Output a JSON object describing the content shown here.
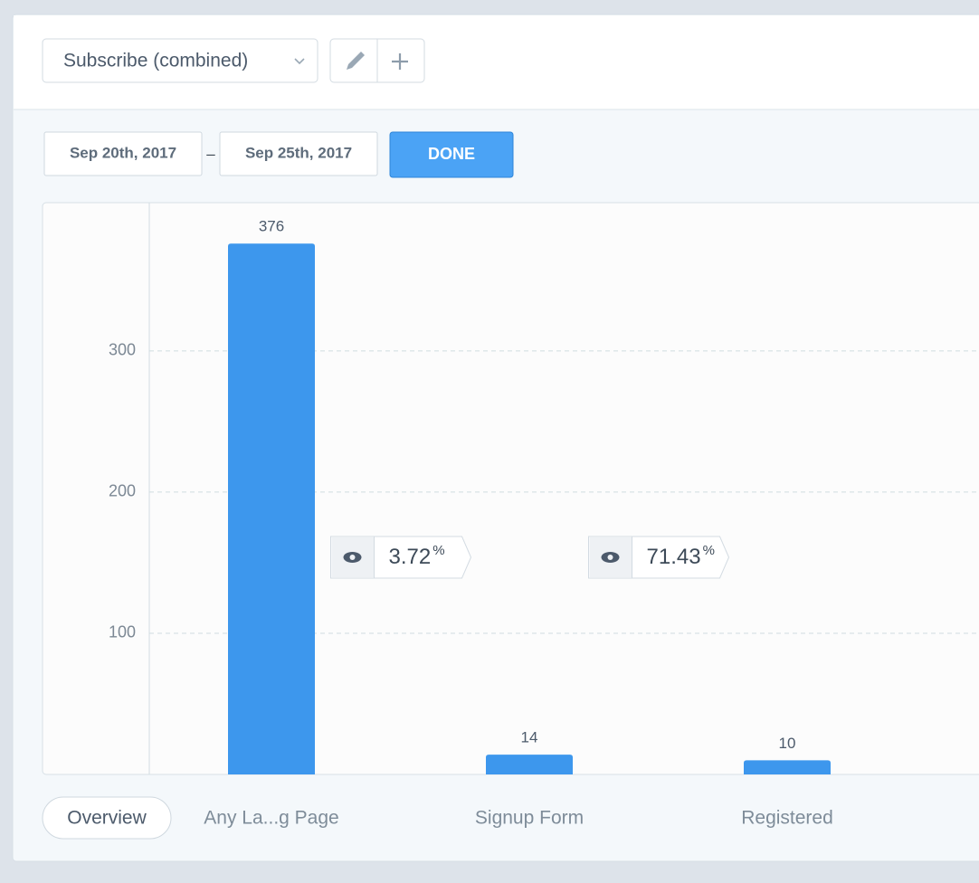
{
  "toolbar": {
    "selected_event": "Subscribe (combined)"
  },
  "date_range": {
    "start": "Sep 20th, 2017",
    "separator": "–",
    "end": "Sep 25th, 2017",
    "button": "DONE"
  },
  "chart_data": {
    "type": "bar",
    "categories": [
      "Any La...g Page",
      "Signup Form",
      "Registered"
    ],
    "values": [
      376,
      14,
      10
    ],
    "color": "#3d97ed",
    "ylim": [
      0,
      405
    ],
    "yticks": [
      100,
      200,
      300
    ],
    "grid": true,
    "conversion_rates": [
      3.72,
      71.43
    ],
    "conversion_unit": "%"
  },
  "tabs": {
    "overview": "Overview"
  }
}
